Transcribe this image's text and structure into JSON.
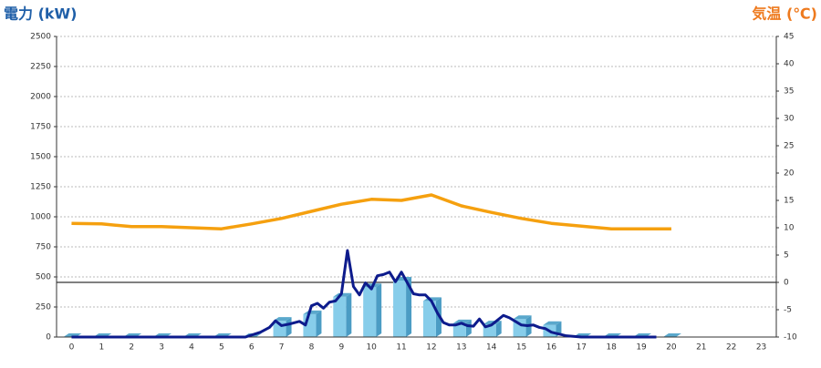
{
  "chart_data": {
    "type": "bar_line",
    "title": "電力 (kW)",
    "y2_title": "気温 (℃)",
    "categories": [
      "0",
      "1",
      "2",
      "3",
      "4",
      "5",
      "6",
      "7",
      "8",
      "9",
      "10",
      "11",
      "12",
      "13",
      "14",
      "15",
      "16",
      "17",
      "18",
      "19",
      "20",
      "21",
      "22",
      "23"
    ],
    "xlim": [
      -0.5,
      23.5
    ],
    "ylim": [
      0,
      2500
    ],
    "yticks": [
      0,
      250,
      500,
      750,
      1000,
      1250,
      1500,
      1750,
      2000,
      2250,
      2500
    ],
    "y2lim": [
      -10,
      45
    ],
    "y2ticks": [
      -10,
      -5,
      0,
      5,
      10,
      15,
      20,
      25,
      30,
      35,
      40,
      45
    ],
    "grid": true,
    "zero_line_axis": "y2",
    "bar_series": {
      "color": "#87cdea",
      "values": [
        0,
        0,
        0,
        0,
        0,
        0,
        0,
        135,
        190,
        335,
        415,
        470,
        300,
        115,
        105,
        150,
        100,
        0,
        0,
        0,
        0,
        null,
        null,
        null
      ]
    },
    "line_series": {
      "color": "#0d1b8c",
      "x": [
        0,
        5.8,
        6.3,
        6.6,
        6.8,
        7.0,
        7.3,
        7.6,
        7.8,
        8.0,
        8.2,
        8.4,
        8.6,
        8.8,
        9.0,
        9.2,
        9.4,
        9.6,
        9.8,
        10.0,
        10.2,
        10.4,
        10.6,
        10.8,
        11.0,
        11.2,
        11.4,
        11.6,
        11.8,
        12.0,
        12.2,
        12.4,
        12.6,
        12.8,
        13.0,
        13.2,
        13.4,
        13.6,
        13.8,
        14.0,
        14.2,
        14.4,
        14.6,
        14.8,
        15.0,
        15.2,
        15.4,
        15.6,
        15.8,
        16.0,
        16.5,
        17.0,
        19.5
      ],
      "values": [
        0,
        0,
        40,
        80,
        135,
        95,
        110,
        130,
        100,
        260,
        280,
        240,
        290,
        300,
        360,
        720,
        420,
        350,
        450,
        400,
        510,
        520,
        540,
        460,
        540,
        450,
        360,
        350,
        350,
        300,
        200,
        120,
        100,
        100,
        115,
        95,
        90,
        150,
        85,
        100,
        140,
        180,
        160,
        130,
        100,
        95,
        100,
        80,
        70,
        40,
        10,
        0,
        0
      ]
    },
    "temp_series": {
      "color": "#f5a00f",
      "axis": "y2",
      "values": [
        10.8,
        10.7,
        10.2,
        10.2,
        10,
        9.8,
        10.7,
        11.7,
        13,
        14.3,
        15.2,
        15,
        16,
        14,
        12.8,
        11.7,
        10.8,
        10.3,
        9.8,
        9.8,
        9.8,
        null,
        null,
        null
      ]
    }
  }
}
